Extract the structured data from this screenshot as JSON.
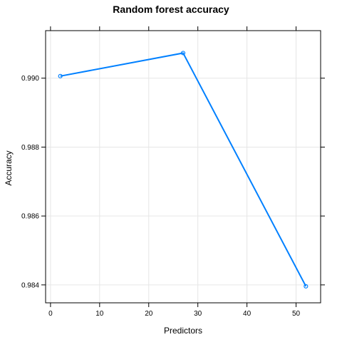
{
  "chart_data": {
    "type": "line",
    "title": "Random forest accuracy",
    "xlabel": "Predictors",
    "ylabel": "Accuracy",
    "x": [
      2,
      27,
      52
    ],
    "series": [
      {
        "values": [
          0.99006,
          0.99073,
          0.98396
        ]
      }
    ],
    "xlim": [
      -1,
      55
    ],
    "ylim": [
      0.98348,
      0.99138
    ],
    "xticks": [
      0,
      10,
      20,
      30,
      40,
      50
    ],
    "yticks": [
      0.984,
      0.986,
      0.988,
      0.99
    ],
    "xtick_labels": [
      "0",
      "10",
      "20",
      "30",
      "40",
      "50"
    ],
    "ytick_labels": [
      "0.984",
      "0.986",
      "0.988",
      "0.990"
    ],
    "grid": true,
    "legend": "none",
    "colors": {
      "line": "#0080ff",
      "grid": "#e6e6e6",
      "frame": "#000000"
    }
  }
}
